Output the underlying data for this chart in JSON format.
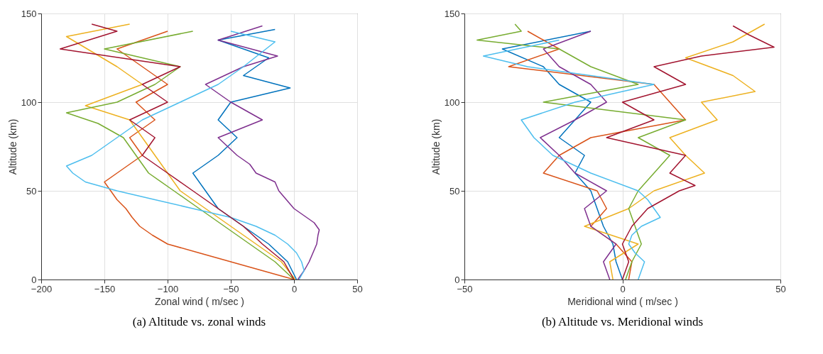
{
  "chart_data": [
    {
      "type": "line",
      "title": "(a)  Altitude vs. zonal winds",
      "xlabel": "Zonal wind (   m/sec )",
      "ylabel": "Altitude (km)",
      "xlim": [
        -200,
        50
      ],
      "ylim": [
        0,
        150
      ],
      "xticks": [
        -200,
        -150,
        -100,
        -50,
        0,
        50
      ],
      "yticks": [
        0,
        50,
        100,
        150
      ],
      "grid": true,
      "series": [
        {
          "color": "#0072bd",
          "x": [
            2,
            -5,
            -20,
            -40,
            -60,
            -70,
            -80,
            -60,
            -45,
            -60,
            -50,
            -3,
            -40,
            -20,
            -60,
            -15
          ],
          "values": [
            0,
            10,
            20,
            30,
            40,
            50,
            60,
            70,
            80,
            90,
            100,
            108,
            115,
            125,
            135,
            141
          ]
        },
        {
          "color": "#d95319",
          "x": [
            0,
            -25,
            -50,
            -75,
            -100,
            -112,
            -122,
            -128,
            -133,
            -140,
            -145,
            -150,
            -140,
            -120,
            -130,
            -110,
            -125,
            -100,
            -120,
            -140,
            -100
          ],
          "values": [
            0,
            5,
            10,
            15,
            20,
            25,
            30,
            35,
            40,
            45,
            50,
            55,
            60,
            70,
            80,
            90,
            100,
            110,
            120,
            130,
            140
          ]
        },
        {
          "color": "#edb120",
          "x": [
            1,
            -10,
            -30,
            -50,
            -70,
            -90,
            -100,
            -110,
            -120,
            -130,
            -165,
            -120,
            -140,
            -180,
            -130
          ],
          "values": [
            0,
            10,
            20,
            30,
            40,
            50,
            60,
            70,
            80,
            90,
            98,
            110,
            120,
            137,
            144
          ]
        },
        {
          "color": "#7e2f8e",
          "x": [
            3,
            8,
            12,
            15,
            18,
            19,
            20,
            16,
            8,
            0,
            -6,
            -12,
            -15,
            -30,
            -35,
            -45,
            -60,
            -25,
            -50,
            -70,
            -40,
            -13,
            -60,
            -25
          ],
          "values": [
            0,
            5,
            10,
            15,
            20,
            25,
            28,
            32,
            36,
            40,
            45,
            50,
            55,
            60,
            65,
            70,
            80,
            90,
            100,
            110,
            120,
            126,
            135,
            143
          ]
        },
        {
          "color": "#77ac30",
          "x": [
            0,
            -15,
            -35,
            -55,
            -75,
            -95,
            -115,
            -125,
            -135,
            -155,
            -180,
            -140,
            -110,
            -90,
            -150,
            -80
          ],
          "values": [
            0,
            10,
            20,
            30,
            40,
            50,
            60,
            70,
            80,
            88,
            94,
            100,
            110,
            120,
            130,
            140
          ]
        },
        {
          "color": "#4dbeee",
          "x": [
            4,
            8,
            6,
            2,
            -5,
            -15,
            -30,
            -50,
            -80,
            -110,
            -140,
            -165,
            -175,
            -180,
            -160,
            -150,
            -140,
            -120,
            -90,
            -60,
            -40,
            -15,
            -50
          ],
          "values": [
            0,
            5,
            10,
            15,
            20,
            25,
            30,
            35,
            40,
            45,
            50,
            55,
            60,
            64,
            70,
            75,
            80,
            90,
            100,
            110,
            120,
            134,
            140
          ]
        },
        {
          "color": "#a2142f",
          "x": [
            0,
            -8,
            -25,
            -40,
            -60,
            -80,
            -100,
            -120,
            -110,
            -130,
            -100,
            -120,
            -90,
            -185,
            -140,
            -160
          ],
          "values": [
            0,
            10,
            20,
            30,
            40,
            50,
            60,
            70,
            80,
            90,
            100,
            110,
            120,
            130,
            140,
            144
          ]
        }
      ]
    },
    {
      "type": "line",
      "title": "(b)  Altitude vs. Meridional winds",
      "xlabel": "Meridional wind (    m/sec )",
      "ylabel": "Altitude (km)",
      "xlim": [
        -50,
        50
      ],
      "ylim": [
        0,
        150
      ],
      "xticks": [
        -50,
        0,
        50
      ],
      "yticks": [
        0,
        50,
        100,
        150
      ],
      "grid": true,
      "series": [
        {
          "color": "#0072bd",
          "x": [
            0,
            -2,
            -3,
            -6,
            -8,
            -10,
            -15,
            -12,
            -20,
            -15,
            -10,
            -20,
            -25,
            -38,
            -10
          ],
          "values": [
            0,
            10,
            20,
            30,
            40,
            50,
            60,
            70,
            80,
            90,
            100,
            110,
            120,
            130,
            140
          ]
        },
        {
          "color": "#d95319",
          "x": [
            2,
            3,
            -2,
            -10,
            -5,
            -8,
            -25,
            -20,
            -10,
            20,
            15,
            10,
            -36,
            -20,
            -30
          ],
          "values": [
            0,
            10,
            20,
            30,
            40,
            50,
            60,
            70,
            80,
            90,
            100,
            110,
            120,
            130,
            140
          ]
        },
        {
          "color": "#edb120",
          "x": [
            -3,
            -4,
            5,
            -12,
            2,
            10,
            26,
            20,
            15,
            30,
            25,
            42,
            35,
            20,
            35,
            45
          ],
          "values": [
            0,
            10,
            20,
            30,
            40,
            50,
            60,
            70,
            80,
            90,
            100,
            106,
            115,
            125,
            134,
            144
          ]
        },
        {
          "color": "#7e2f8e",
          "x": [
            -4,
            -6,
            -2,
            -10,
            -12,
            -5,
            -15,
            -20,
            -26,
            -15,
            -5,
            -10,
            -20,
            -25,
            -10
          ],
          "values": [
            0,
            10,
            20,
            30,
            40,
            50,
            60,
            70,
            80,
            90,
            100,
            110,
            120,
            130,
            140
          ]
        },
        {
          "color": "#77ac30",
          "x": [
            1,
            3,
            6,
            4,
            2,
            5,
            10,
            15,
            5,
            20,
            -25,
            5,
            -10,
            -20,
            -46,
            -32,
            -34
          ],
          "values": [
            0,
            10,
            20,
            30,
            40,
            50,
            60,
            70,
            80,
            90,
            100,
            110,
            120,
            130,
            135,
            140,
            144
          ]
        },
        {
          "color": "#4dbeee",
          "x": [
            5,
            6,
            7,
            4,
            2,
            3,
            6,
            12,
            10,
            8,
            5,
            -10,
            -22,
            -28,
            -32,
            -15,
            10,
            -30,
            -44,
            -20
          ],
          "values": [
            0,
            5,
            10,
            15,
            20,
            25,
            30,
            35,
            40,
            45,
            50,
            60,
            70,
            80,
            90,
            100,
            110,
            120,
            126,
            135
          ]
        },
        {
          "color": "#a2142f",
          "x": [
            0,
            2,
            0,
            3,
            8,
            18,
            23,
            15,
            20,
            -5,
            10,
            0,
            20,
            10,
            25,
            48,
            40,
            35
          ],
          "values": [
            0,
            10,
            20,
            30,
            40,
            50,
            53,
            60,
            70,
            80,
            90,
            100,
            110,
            120,
            126,
            131,
            138,
            143
          ]
        }
      ]
    }
  ]
}
